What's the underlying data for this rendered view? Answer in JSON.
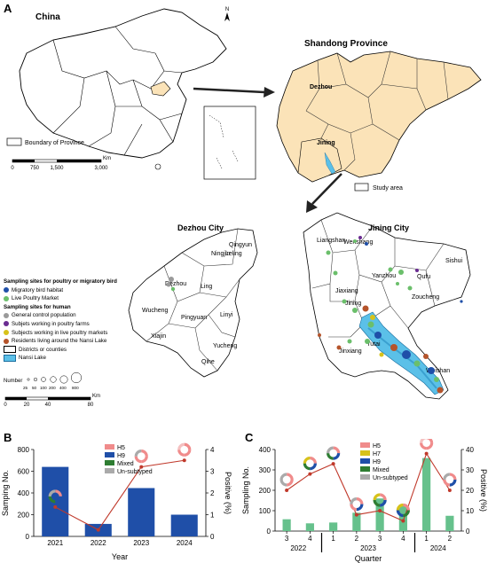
{
  "panelA": {
    "letter": "A",
    "china": {
      "title": "China",
      "boundary_label": "Boundary of Province",
      "scale": {
        "ticks": [
          "0",
          "750",
          "1,500",
          "3,000"
        ],
        "unit": "Km"
      },
      "north": "N"
    },
    "shandong": {
      "title": "Shandong Province",
      "dezhou": "Dezhou",
      "jining": "Jining",
      "study_area": "Study area",
      "fill_color": "#fbe3b8"
    },
    "dezhou_city": {
      "title": "Dezhou City",
      "counties": [
        "Qingyun",
        "Ningjin",
        "Leling",
        "Dezhou",
        "Ling",
        "Wucheng",
        "Pingyuan",
        "Linyi",
        "Xiajin",
        "Yucheng",
        "Qihe"
      ]
    },
    "jining_city": {
      "title": "Jining City",
      "counties": [
        "Liangshan",
        "Wenshang",
        "Sishui",
        "Yanzhou",
        "Qufu",
        "Jiaxiang",
        "Jining",
        "Zoucheng",
        "Yutai",
        "Jinxiang",
        "Weishan"
      ]
    },
    "legend": {
      "poultry_header": "Sampling sites for poultry or migratory bird",
      "poultry_items": [
        {
          "label": "Migratory bird habitat",
          "color": "#1f4fa8"
        },
        {
          "label": "Live Poultry Market",
          "color": "#6bbf6b"
        }
      ],
      "human_header": "Sampling sites for human",
      "human_items": [
        {
          "label": "General control population",
          "color": "#9a9a9a"
        },
        {
          "label": "Subjets working in poultry farms",
          "color": "#6a2c91"
        },
        {
          "label": "Subjects working in live poultry markets",
          "color": "#d7c21a"
        },
        {
          "label": "Residents living around the Nansi Lake",
          "color": "#b5542b"
        }
      ],
      "districts_label": "Districts or counties",
      "lake_label": "Nansi Lake",
      "lake_color": "#5bc0e8",
      "number_label": "Number",
      "number_sizes": [
        "25",
        "50",
        "100",
        "200",
        "400",
        "800"
      ],
      "scale": {
        "ticks": [
          "0",
          "20",
          "40",
          "80"
        ],
        "unit": "Km"
      }
    }
  },
  "panelB": {
    "letter": "B",
    "legend": [
      "H5",
      "H9",
      "Mixed",
      "Un-subtyped"
    ]
  },
  "panelC": {
    "letter": "C",
    "legend": [
      "H5",
      "H7",
      "H9",
      "Mixed",
      "Un-subtyped"
    ],
    "year_labels": [
      "2022",
      "2023",
      "2024"
    ]
  },
  "chart_data": [
    {
      "type": "bar",
      "xlabel": "Year",
      "ylabel": "Samping No.",
      "y2label": "Positive (%)",
      "categories": [
        "2021",
        "2022",
        "2023",
        "2024"
      ],
      "ylim": [
        0,
        800
      ],
      "yticks": [
        0,
        200,
        400,
        600,
        800
      ],
      "y2lim": [
        0,
        4
      ],
      "y2ticks": [
        0,
        1,
        2,
        3,
        4
      ],
      "bar_color": "#1f4fa8",
      "line_color": "#c0392b",
      "series": [
        {
          "type": "bar",
          "values": [
            640,
            115,
            445,
            200
          ]
        },
        {
          "type": "line",
          "axis": "right",
          "values": [
            1.35,
            0.3,
            3.2,
            3.5
          ]
        }
      ]
    },
    {
      "type": "bar",
      "xlabel": "Quarter",
      "ylabel": "Sampling No.",
      "y2label": "Positive (%)",
      "categories": [
        "3",
        "4",
        "1",
        "2",
        "3",
        "4",
        "1",
        "2"
      ],
      "ylim": [
        0,
        400
      ],
      "yticks": [
        0,
        100,
        200,
        300,
        400
      ],
      "y2lim": [
        0,
        40
      ],
      "y2ticks": [
        0,
        10,
        20,
        30,
        40
      ],
      "bar_color": "#66c18c",
      "line_color": "#c0392b",
      "series": [
        {
          "type": "bar",
          "values": [
            58,
            38,
            42,
            90,
            160,
            130,
            358,
            75
          ]
        },
        {
          "type": "line",
          "axis": "right",
          "values": [
            20,
            28,
            33,
            8,
            10,
            5,
            38,
            20
          ]
        }
      ]
    }
  ]
}
